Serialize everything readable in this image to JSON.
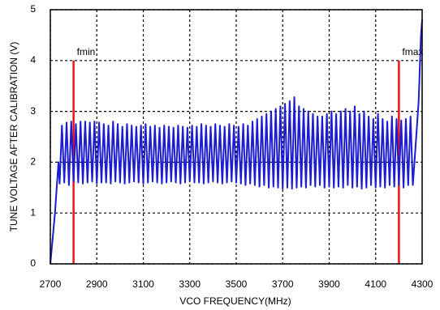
{
  "chart_data": {
    "type": "line",
    "x_label": "VCO FREQUENCY(MHz)",
    "y_label": "TUNE VOLTAGE AFTER CALIBRATION (V)",
    "xlim": [
      2700,
      4300
    ],
    "xticks": [
      2700,
      2900,
      3100,
      3300,
      3500,
      3700,
      3900,
      4100,
      4300
    ],
    "ylim": [
      0,
      5
    ],
    "yticks": [
      0,
      1,
      2,
      3,
      4,
      5
    ],
    "grid": true,
    "series": [
      {
        "color": "#1c1cd0",
        "x": [
          2700,
          2720,
          2735,
          2740,
          2750,
          2760,
          2770,
          2780,
          2790,
          2800,
          2810,
          2820,
          2830,
          2840,
          2850,
          2860,
          2870,
          2880,
          2890,
          2900,
          2910,
          2920,
          2930,
          2940,
          2950,
          2960,
          2970,
          2980,
          2990,
          3000,
          3010,
          3020,
          3030,
          3040,
          3050,
          3060,
          3070,
          3080,
          3090,
          3100,
          3110,
          3120,
          3130,
          3140,
          3150,
          3160,
          3170,
          3180,
          3190,
          3200,
          3210,
          3220,
          3230,
          3240,
          3250,
          3260,
          3270,
          3280,
          3290,
          3300,
          3310,
          3320,
          3330,
          3340,
          3350,
          3360,
          3370,
          3380,
          3390,
          3400,
          3410,
          3420,
          3430,
          3440,
          3450,
          3460,
          3470,
          3480,
          3490,
          3500,
          3510,
          3520,
          3530,
          3540,
          3550,
          3560,
          3570,
          3580,
          3590,
          3600,
          3610,
          3620,
          3630,
          3640,
          3650,
          3660,
          3670,
          3680,
          3690,
          3700,
          3710,
          3720,
          3730,
          3740,
          3750,
          3760,
          3770,
          3780,
          3790,
          3800,
          3810,
          3820,
          3830,
          3840,
          3850,
          3860,
          3870,
          3880,
          3890,
          3900,
          3910,
          3920,
          3930,
          3940,
          3950,
          3960,
          3970,
          3980,
          3990,
          4000,
          4010,
          4020,
          4030,
          4040,
          4050,
          4060,
          4070,
          4080,
          4090,
          4100,
          4110,
          4120,
          4130,
          4140,
          4150,
          4160,
          4170,
          4180,
          4190,
          4200,
          4210,
          4220,
          4230,
          4240,
          4250,
          4260,
          4270,
          4285,
          4295,
          4300
        ],
        "values": [
          0,
          1.0,
          2.0,
          1.58,
          2.72,
          1.6,
          2.78,
          1.55,
          2.8,
          1.62,
          2.75,
          1.6,
          2.8,
          1.58,
          2.8,
          1.6,
          2.78,
          1.62,
          2.8,
          1.58,
          2.78,
          1.6,
          2.75,
          1.6,
          2.72,
          1.58,
          2.8,
          1.62,
          2.75,
          1.6,
          2.7,
          1.58,
          2.75,
          1.6,
          2.72,
          1.62,
          2.7,
          1.6,
          2.72,
          1.58,
          2.75,
          1.6,
          2.7,
          1.62,
          2.72,
          1.6,
          2.68,
          1.58,
          2.72,
          1.6,
          2.7,
          1.62,
          2.68,
          1.6,
          2.72,
          1.58,
          2.7,
          1.6,
          2.68,
          1.62,
          2.72,
          1.6,
          2.7,
          1.6,
          2.75,
          1.58,
          2.72,
          1.6,
          2.7,
          1.62,
          2.75,
          1.6,
          2.72,
          1.58,
          2.7,
          1.6,
          2.75,
          1.62,
          2.72,
          1.6,
          2.7,
          1.58,
          2.75,
          1.55,
          2.72,
          1.58,
          2.8,
          1.55,
          2.85,
          1.52,
          2.9,
          1.55,
          2.95,
          1.5,
          3.0,
          1.52,
          3.05,
          1.5,
          3.1,
          1.48,
          3.15,
          1.5,
          3.2,
          1.48,
          3.28,
          1.5,
          3.1,
          1.52,
          3.05,
          1.5,
          3.0,
          1.55,
          2.95,
          1.52,
          2.9,
          1.55,
          2.9,
          1.5,
          2.95,
          1.52,
          3.0,
          1.5,
          2.95,
          1.52,
          3.0,
          1.5,
          3.05,
          1.55,
          3.0,
          1.5,
          3.1,
          1.52,
          2.95,
          1.48,
          3.0,
          1.5,
          2.9,
          1.55,
          2.85,
          1.5,
          2.95,
          1.52,
          2.85,
          1.5,
          2.8,
          1.55,
          2.9,
          1.52,
          2.85,
          1.55,
          2.82,
          1.5,
          2.85,
          1.55,
          2.9,
          1.55,
          2.2,
          3.2,
          4.5,
          4.8
        ]
      }
    ],
    "markers": [
      {
        "x": 2800,
        "top": 4,
        "label": "fmin",
        "color": "#e8141a"
      },
      {
        "x": 4200,
        "top": 4,
        "label": "fmax",
        "color": "#e8141a"
      }
    ]
  }
}
